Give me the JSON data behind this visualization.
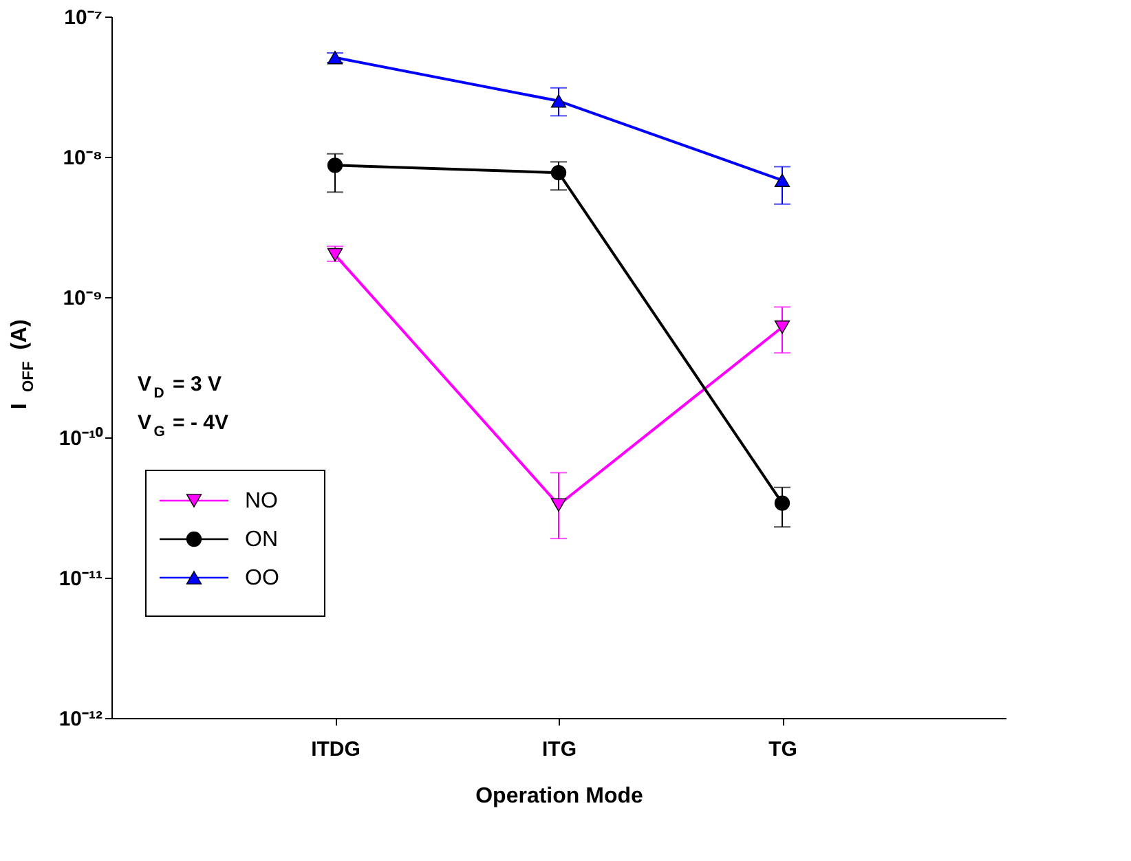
{
  "chart_data": {
    "type": "line",
    "xlabel": "Operation Mode",
    "ylabel": "I$_{OFF}$ (A)",
    "categories": [
      "ITDG",
      "ITG",
      "TG"
    ],
    "log": "y",
    "ylim": [
      1e-12,
      1e-07
    ],
    "yticks": [
      {
        "value": 1e-12,
        "label": "10⁻¹²"
      },
      {
        "value": 1e-11,
        "label": "10⁻¹¹"
      },
      {
        "value": 1e-10,
        "label": "10⁻¹⁰"
      },
      {
        "value": 1e-09,
        "label": "10⁻⁹"
      },
      {
        "value": 1e-08,
        "label": "10⁻⁸"
      },
      {
        "value": 1e-07,
        "label": "10⁻⁷"
      }
    ],
    "grid": false,
    "legend": "bottom left",
    "annotations": [
      "V$_{D}$ = 3 V",
      "V$_{G}$ = - 4V"
    ],
    "series": [
      {
        "name": "NO",
        "color": "#ff00ff",
        "marker": "triangle-down",
        "values": [
          2e-09,
          3.3e-11,
          6.1e-10
        ],
        "errors": [
          [
            1.8e-09,
            2.3e-09
          ],
          [
            1.9e-11,
            5.6e-11
          ],
          [
            4e-10,
            8.5e-10
          ]
        ]
      },
      {
        "name": "ON",
        "color": "#000000",
        "marker": "circle",
        "values": [
          8.7e-09,
          7.7e-09,
          3.4e-11
        ],
        "errors": [
          [
            5.6e-09,
            1.05e-08
          ],
          [
            5.8e-09,
            9.2e-09
          ],
          [
            2.3e-11,
            4.4e-11
          ]
        ]
      },
      {
        "name": "OO",
        "color": "#0000ff",
        "marker": "triangle",
        "values": [
          5.1e-08,
          2.5e-08,
          6.8e-09
        ],
        "errors": [
          [
            4.7e-08,
            5.5e-08
          ],
          [
            1.96e-08,
            3.1e-08
          ],
          [
            4.6e-09,
            8.5e-09
          ]
        ]
      }
    ]
  }
}
